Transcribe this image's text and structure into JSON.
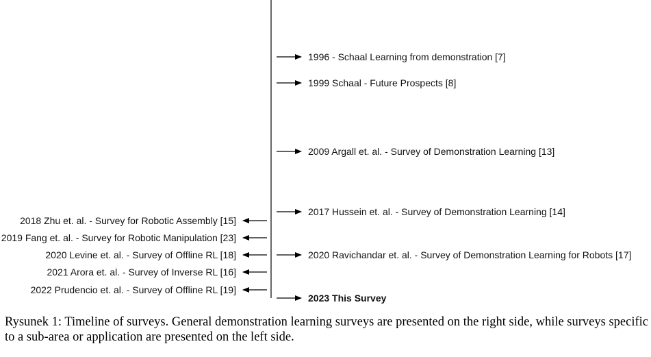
{
  "right_entries": [
    {
      "text": "1996 - Schaal Learning from demonstration [7]",
      "bold": false
    },
    {
      "text": "1999 Schaal - Future Prospects [8]",
      "bold": false
    },
    {
      "text": "2009 Argall et. al. - Survey of Demonstration Learning [13]",
      "bold": false
    },
    {
      "text": "2017 Hussein et. al. - Survey of Demonstration Learning [14]",
      "bold": false
    },
    {
      "text": "2020 Ravichandar et. al. - Survey of Demonstration Learning for Robots [17]",
      "bold": false
    },
    {
      "text": "2023 This Survey",
      "bold": true
    }
  ],
  "left_entries": [
    {
      "text": "2018 Zhu et. al. - Survey for Robotic  Assembly [15]"
    },
    {
      "text": "2019 Fang et. al. - Survey for Robotic  Manipulation [23]"
    },
    {
      "text": "2020 Levine et. al. - Survey of Offline RL [18]"
    },
    {
      "text": "2021 Arora et. al. - Survey of Inverse RL [16]"
    },
    {
      "text": "2022 Prudencio et. al. - Survey of Offline RL [19]"
    }
  ],
  "caption": "Rysunek 1: Timeline of surveys. General demonstration learning surveys are presented on the right side, while surveys specific to a sub-area or application are presented on the left side."
}
